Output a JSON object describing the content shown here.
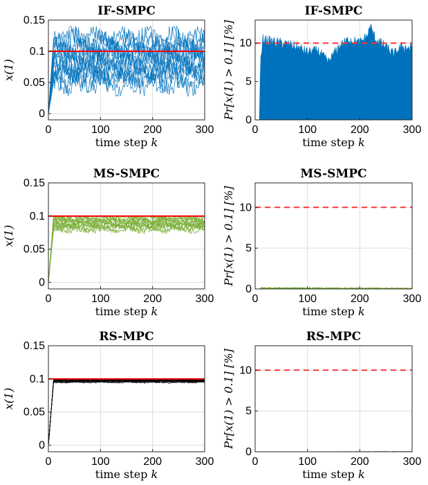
{
  "chart_data": [
    {
      "type": "line",
      "title": "IF-SMPC",
      "xlabel": "time step",
      "xlabel_var": "k",
      "ylabel": "x(1)",
      "xlim": [
        0,
        300
      ],
      "ylim": [
        -0.01,
        0.15
      ],
      "xticks": [
        "0",
        "100",
        "200",
        "300"
      ],
      "yticks": [
        "0",
        "0.05",
        "0.1",
        "0.15"
      ],
      "ytick_values": [
        0,
        0.05,
        0.1,
        0.15
      ],
      "grid": true,
      "series_color": "#0072BD",
      "band": {
        "lower": 0.05,
        "upper": 0.12,
        "peak": 0.14,
        "trough": 0.028
      },
      "constraint": 0.1,
      "constraint_color": "#FF0000",
      "constraint_style": "solid"
    },
    {
      "type": "bar",
      "title": "IF-SMPC",
      "xlabel": "time step",
      "xlabel_var": "k",
      "ylabel": "Pr[x(1) > 0.1] [%]",
      "xlim": [
        0,
        300
      ],
      "ylim": [
        0,
        13
      ],
      "xticks": [
        "0",
        "100",
        "200",
        "300"
      ],
      "yticks": [
        "0",
        "5",
        "10"
      ],
      "ytick_values": [
        0,
        5,
        10
      ],
      "grid": true,
      "series_color": "#0072BD",
      "profile": [
        [
          0,
          0
        ],
        [
          8,
          0
        ],
        [
          10,
          7
        ],
        [
          15,
          10.5
        ],
        [
          30,
          10.2
        ],
        [
          50,
          10
        ],
        [
          80,
          9.5
        ],
        [
          100,
          8.8
        ],
        [
          120,
          9
        ],
        [
          140,
          7.5
        ],
        [
          160,
          9.5
        ],
        [
          180,
          10.5
        ],
        [
          200,
          10
        ],
        [
          215,
          11
        ],
        [
          220,
          12.2
        ],
        [
          230,
          10.5
        ],
        [
          250,
          9.5
        ],
        [
          265,
          8.5
        ],
        [
          280,
          9.5
        ],
        [
          300,
          9.3
        ]
      ],
      "constraint": 10,
      "constraint_color": "#FF3333",
      "constraint_style": "dashed"
    },
    {
      "type": "line",
      "title": "MS-SMPC",
      "xlabel": "time step",
      "xlabel_var": "k",
      "ylabel": "x(1)",
      "xlim": [
        0,
        300
      ],
      "ylim": [
        -0.01,
        0.15
      ],
      "xticks": [
        "0",
        "100",
        "200",
        "300"
      ],
      "yticks": [
        "0",
        "0.05",
        "0.1",
        "0.15"
      ],
      "ytick_values": [
        0,
        0.05,
        0.1,
        0.15
      ],
      "grid": true,
      "series_color": "#77AC30",
      "band": {
        "lower": 0.08,
        "upper": 0.1,
        "peak": 0.1,
        "trough": 0.065
      },
      "constraint": 0.1,
      "constraint_color": "#FF0000",
      "constraint_style": "solid"
    },
    {
      "type": "bar",
      "title": "MS-SMPC",
      "xlabel": "time step",
      "xlabel_var": "k",
      "ylabel": "Pr[x(1) > 0.1] [%]",
      "xlim": [
        0,
        300
      ],
      "ylim": [
        0,
        13
      ],
      "xticks": [
        "0",
        "100",
        "200",
        "300"
      ],
      "yticks": [
        "0",
        "5",
        "10"
      ],
      "ytick_values": [
        0,
        5,
        10
      ],
      "grid": true,
      "series_color": "#77AC30",
      "profile": [
        [
          0,
          0
        ],
        [
          8,
          0
        ],
        [
          12,
          0.15
        ],
        [
          300,
          0.1
        ]
      ],
      "constraint": 10,
      "constraint_color": "#FF3333",
      "constraint_style": "dashed"
    },
    {
      "type": "line",
      "title": "RS-MPC",
      "xlabel": "time step",
      "xlabel_var": "k",
      "ylabel": "x(1)",
      "xlim": [
        0,
        300
      ],
      "ylim": [
        -0.01,
        0.15
      ],
      "xticks": [
        "0",
        "100",
        "200",
        "300"
      ],
      "yticks": [
        "0",
        "0.05",
        "0.1",
        "0.15"
      ],
      "ytick_values": [
        0,
        0.05,
        0.1,
        0.15
      ],
      "grid": true,
      "series_color": "#000000",
      "band": {
        "lower": 0.095,
        "upper": 0.0995,
        "peak": 0.0995,
        "trough": 0.09
      },
      "constraint": 0.1,
      "constraint_color": "#FF0000",
      "constraint_style": "solid"
    },
    {
      "type": "bar",
      "title": "RS-MPC",
      "xlabel": "time step",
      "xlabel_var": "k",
      "ylabel": "Pr[x(1) > 0.1] [%]",
      "xlim": [
        0,
        300
      ],
      "ylim": [
        0,
        13
      ],
      "xticks": [
        "0",
        "100",
        "200",
        "300"
      ],
      "yticks": [
        "0",
        "5",
        "10"
      ],
      "ytick_values": [
        0,
        5,
        10
      ],
      "grid": true,
      "series_color": "#000000",
      "profile": [
        [
          0,
          0
        ],
        [
          300,
          0.03
        ]
      ],
      "constraint": 10,
      "constraint_color": "#FF3333",
      "constraint_style": "dashed"
    }
  ]
}
